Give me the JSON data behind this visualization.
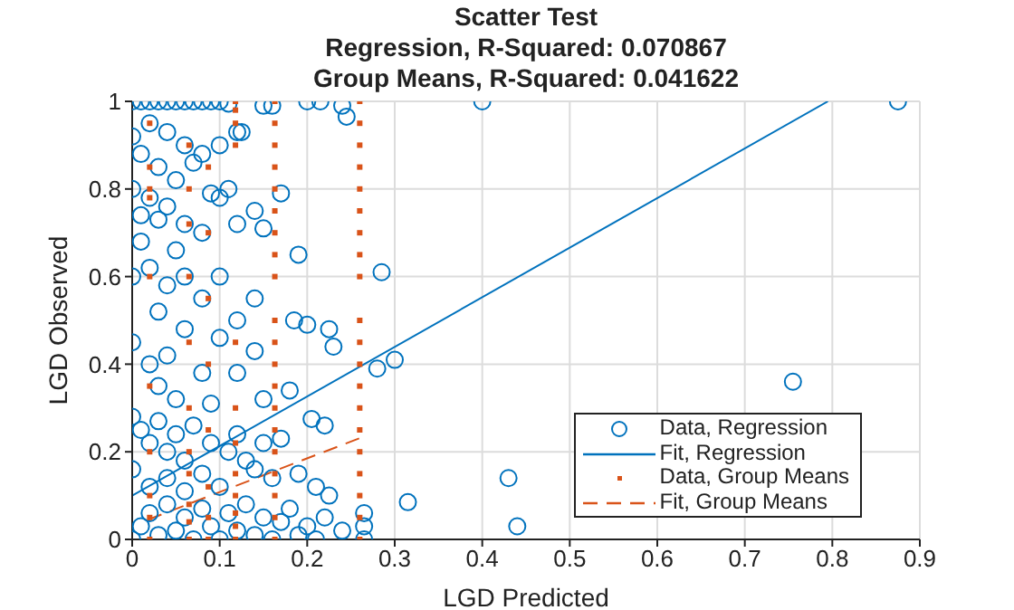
{
  "chart_data": {
    "type": "scatter",
    "title": "Scatter Test",
    "subtitle": "Regression, R-Squared: 0.070867\nGroup Means, R-Squared: 0.041622",
    "xlabel": "LGD Predicted",
    "ylabel": "LGD Observed",
    "xlim": [
      0,
      0.9
    ],
    "xticks": [
      0,
      0.1,
      0.2,
      0.3,
      0.4,
      0.5,
      0.6,
      0.7,
      0.8,
      0.9
    ],
    "ylim": [
      0,
      1
    ],
    "yticks": [
      0,
      0.2,
      0.4,
      0.6,
      0.8,
      1
    ],
    "grid": true,
    "legend": "bottom right",
    "series": [
      {
        "name": "Data, Regression",
        "type": "scatter",
        "marker": "circle",
        "color": "#0072bd",
        "x": [
          0,
          0.01,
          0.02,
          0.03,
          0.04,
          0.05,
          0.06,
          0.07,
          0.08,
          0.09,
          0.1,
          0.11,
          0.15,
          0.16,
          0.2,
          0.215,
          0.24,
          0.245,
          0.4,
          0.875,
          0,
          0.02,
          0.04,
          0.06,
          0.08,
          0.1,
          0.12,
          0.125,
          0.03,
          0.01,
          0.07,
          0.05,
          0,
          0.02,
          0.04,
          0.06,
          0.08,
          0.1,
          0.11,
          0.14,
          0.15,
          0.17,
          0.12,
          0.09,
          0.03,
          0.01,
          0,
          0.02,
          0.04,
          0.06,
          0.08,
          0.1,
          0.12,
          0.14,
          0.19,
          0.285,
          0.03,
          0.05,
          0.01,
          0,
          0.02,
          0.04,
          0.06,
          0.08,
          0.1,
          0.12,
          0.14,
          0.185,
          0.2,
          0.225,
          0.23,
          0.28,
          0.3,
          0.18,
          0.15,
          0.03,
          0.05,
          0.09,
          0,
          0.01,
          0.02,
          0.03,
          0.04,
          0.05,
          0.06,
          0.07,
          0.08,
          0.09,
          0.1,
          0.11,
          0.12,
          0.13,
          0.14,
          0.15,
          0.16,
          0.17,
          0.19,
          0.205,
          0.22,
          0.21,
          0.225,
          0.02,
          0.04,
          0.06,
          0,
          0,
          0.01,
          0.02,
          0.03,
          0.04,
          0.05,
          0.06,
          0.07,
          0.08,
          0.09,
          0.1,
          0.11,
          0.12,
          0.13,
          0.14,
          0.15,
          0.16,
          0.17,
          0.18,
          0.19,
          0.2,
          0.21,
          0.22,
          0.24,
          0.265,
          0.265,
          0.265,
          0.315,
          0.43,
          0.44,
          0.755
        ],
        "values": [
          1,
          1,
          1,
          1,
          1,
          1,
          1,
          1,
          1,
          1,
          1,
          0.995,
          0.99,
          0.99,
          1,
          1,
          0.99,
          0.965,
          1,
          1,
          0.92,
          0.95,
          0.93,
          0.9,
          0.88,
          0.9,
          0.93,
          0.93,
          0.85,
          0.88,
          0.86,
          0.82,
          0.8,
          0.78,
          0.76,
          0.72,
          0.7,
          0.78,
          0.8,
          0.75,
          0.71,
          0.79,
          0.72,
          0.79,
          0.73,
          0.74,
          0.6,
          0.62,
          0.58,
          0.6,
          0.55,
          0.6,
          0.5,
          0.55,
          0.65,
          0.61,
          0.52,
          0.66,
          0.68,
          0.45,
          0.4,
          0.42,
          0.48,
          0.38,
          0.46,
          0.38,
          0.43,
          0.5,
          0.49,
          0.48,
          0.44,
          0.39,
          0.41,
          0.34,
          0.32,
          0.35,
          0.32,
          0.31,
          0.28,
          0.25,
          0.22,
          0.27,
          0.2,
          0.24,
          0.18,
          0.26,
          0.15,
          0.22,
          0.12,
          0.2,
          0.24,
          0.18,
          0.16,
          0.22,
          0.14,
          0.23,
          0.15,
          0.275,
          0.26,
          0.12,
          0.1,
          0.12,
          0.14,
          0.11,
          0.16,
          0,
          0.03,
          0.06,
          0.01,
          0.08,
          0.02,
          0.05,
          0,
          0.07,
          0.03,
          0,
          0.06,
          0.02,
          0.08,
          0.01,
          0.05,
          0,
          0.04,
          0.07,
          0.01,
          0.03,
          0,
          0.05,
          0.02,
          0.06,
          0.03,
          0,
          0.085,
          0.14,
          0.03,
          0.36
        ]
      },
      {
        "name": "Fit, Regression",
        "type": "line",
        "line_style": "solid",
        "color": "#0072bd",
        "x": [
          0,
          0.795
        ],
        "values": [
          0.1,
          1
        ]
      },
      {
        "name": "Data, Group Means",
        "type": "scatter",
        "marker": "square",
        "color": "#d95319",
        "x": [
          0.02,
          0.02,
          0.02,
          0.02,
          0.02,
          0.02,
          0.02,
          0.02,
          0.02,
          0.02,
          0.065,
          0.065,
          0.065,
          0.065,
          0.065,
          0.065,
          0.065,
          0.065,
          0.065,
          0.065,
          0.065,
          0.087,
          0.087,
          0.087,
          0.087,
          0.087,
          0.087,
          0.087,
          0.087,
          0.118,
          0.118,
          0.118,
          0.118,
          0.118,
          0.118,
          0.118,
          0.118,
          0.118,
          0.118,
          0.118,
          0.118,
          0.163,
          0.163,
          0.163,
          0.163,
          0.163,
          0.163,
          0.163,
          0.163,
          0.163,
          0.163,
          0.163,
          0.163,
          0.163,
          0.163,
          0.163,
          0.163,
          0.163,
          0.163,
          0.163,
          0.163,
          0.26,
          0.26,
          0.26,
          0.26,
          0.26,
          0.26,
          0.26,
          0.26,
          0.26,
          0.26,
          0.26,
          0.26,
          0.26,
          0.26,
          0.26,
          0.26,
          0.26,
          0.26,
          0.26,
          0.26
        ],
        "values": [
          0,
          0.05,
          0.1,
          0.2,
          0.35,
          0.6,
          0.78,
          0.8,
          0.85,
          0.95,
          0,
          0.04,
          0.08,
          0.15,
          0.2,
          0.3,
          0.45,
          0.6,
          0.72,
          0.8,
          0.9,
          0,
          0.05,
          0.12,
          0.25,
          0.4,
          0.55,
          0.7,
          0.85,
          0,
          0.03,
          0.06,
          0.1,
          0.15,
          0.22,
          0.3,
          0.45,
          0.9,
          0.95,
          0.98,
          1,
          0,
          0.05,
          0.1,
          0.15,
          0.2,
          0.25,
          0.3,
          0.35,
          0.4,
          0.45,
          0.5,
          0.6,
          0.65,
          0.7,
          0.75,
          0.8,
          0.85,
          0.9,
          0.95,
          1,
          0,
          0.05,
          0.1,
          0.15,
          0.2,
          0.25,
          0.3,
          0.35,
          0.4,
          0.45,
          0.5,
          0.6,
          0.65,
          0.7,
          0.75,
          0.8,
          0.85,
          0.9,
          0.95,
          1
        ]
      },
      {
        "name": "Fit, Group Means",
        "type": "line",
        "line_style": "dashed",
        "color": "#d95319",
        "x": [
          0.018,
          0.265
        ],
        "values": [
          0.045,
          0.235
        ]
      }
    ]
  }
}
